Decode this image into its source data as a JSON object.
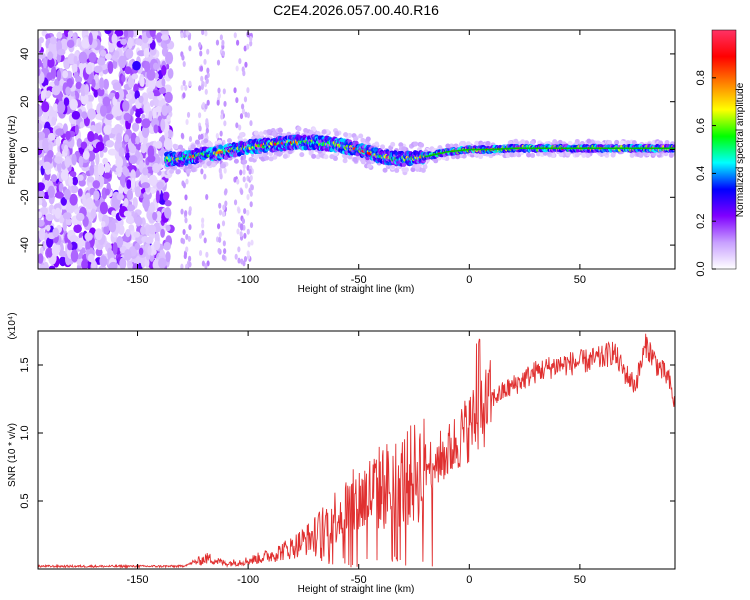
{
  "title": "C2E4.2026.057.00.40.R16",
  "colorbar": {
    "label": "Normalized spectral amplitude",
    "range": [
      0,
      1
    ],
    "ticks": [
      "0.0",
      "0.2",
      "0.4",
      "0.6",
      "0.8"
    ],
    "tick_values": [
      0,
      0.2,
      0.4,
      0.6,
      0.8
    ],
    "stops": [
      "#ffffff",
      "#c8a0ff",
      "#8000ff",
      "#0000ff",
      "#00ffff",
      "#00ff00",
      "#ffff00",
      "#ff8000",
      "#ff0000",
      "#ff3366"
    ]
  },
  "colors": {
    "series": "#e03030",
    "axis": "#000000"
  },
  "chart_data": [
    {
      "type": "heatmap",
      "title": "C2E4.2026.057.00.40.R16",
      "xlabel": "Height of straight line (km)",
      "ylabel": "Frequency (Hz)",
      "xlim": [
        -195,
        93
      ],
      "ylim": [
        -50,
        50
      ],
      "xticks": [
        -150,
        -100,
        -50,
        0,
        50
      ],
      "xtick_labels": [
        "-150",
        "-100",
        "-50",
        "0",
        "50"
      ],
      "yticks": [
        -40,
        -20,
        0,
        20,
        40
      ],
      "ytick_labels": [
        "-40",
        "-20",
        "0",
        "20",
        "40"
      ],
      "ridge_x": [
        -137,
        -130,
        -120,
        -110,
        -100,
        -90,
        -80,
        -70,
        -60,
        -50,
        -40,
        -30,
        -20,
        -10,
        0,
        10,
        20,
        30,
        40,
        50,
        60,
        70,
        80,
        93
      ],
      "ridge_freq": [
        -4,
        -4,
        -2,
        -1,
        1,
        2,
        3,
        3,
        2,
        0,
        -3,
        -4,
        -3,
        -1,
        0,
        0,
        0.5,
        0.5,
        0.5,
        0.5,
        0.5,
        0.5,
        0.5,
        0.5
      ]
    },
    {
      "type": "line",
      "xlabel": "Height of straight line (km)",
      "ylabel": "SNR (10 * v/v)",
      "multiplier": "(x10⁴)",
      "xlim": [
        -195,
        93
      ],
      "ylim": [
        0,
        1.75
      ],
      "xticks": [
        -150,
        -100,
        -50,
        0,
        50
      ],
      "xtick_labels": [
        "-150",
        "-100",
        "-50",
        "0",
        "50"
      ],
      "yticks": [
        0.5,
        1.0,
        1.5
      ],
      "ytick_labels": [
        "0.5",
        "1.0",
        "1.5"
      ],
      "series": [
        {
          "name": "SNR",
          "x": [
            -195,
            -160,
            -130,
            -122,
            -118,
            -110,
            -100,
            -90,
            -80,
            -70,
            -60,
            -50,
            -40,
            -30,
            -20,
            -10,
            -5,
            0,
            5,
            10,
            20,
            30,
            40,
            50,
            60,
            65,
            70,
            75,
            80,
            85,
            90,
            93
          ],
          "y": [
            0.02,
            0.02,
            0.02,
            0.06,
            0.08,
            0.04,
            0.06,
            0.1,
            0.16,
            0.25,
            0.4,
            0.5,
            0.6,
            0.65,
            0.75,
            0.85,
            0.95,
            1.05,
            1.15,
            1.25,
            1.35,
            1.45,
            1.5,
            1.52,
            1.55,
            1.6,
            1.45,
            1.35,
            1.65,
            1.5,
            1.4,
            1.2
          ]
        }
      ]
    }
  ]
}
